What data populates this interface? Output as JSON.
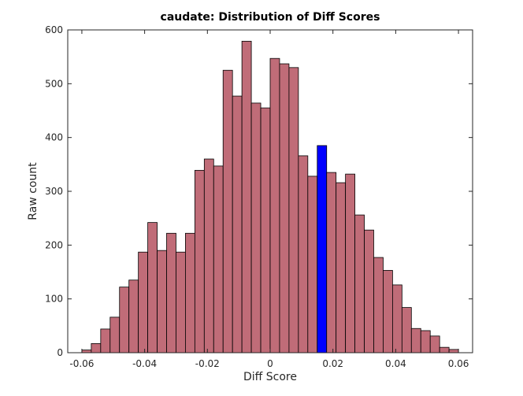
{
  "chart_data": {
    "type": "bar",
    "title": "caudate: Distribution of Diff Scores",
    "xlabel": "Diff Score",
    "ylabel": "Raw count",
    "xlim": [
      -0.0645,
      0.0645
    ],
    "ylim": [
      0,
      600
    ],
    "xticks": [
      -0.06,
      -0.04,
      -0.02,
      0,
      0.02,
      0.04,
      0.06
    ],
    "xtick_labels": [
      "-0.06",
      "-0.04",
      "-0.02",
      "0",
      "0.02",
      "0.04",
      "0.06"
    ],
    "yticks": [
      0,
      100,
      200,
      300,
      400,
      500,
      600
    ],
    "ytick_labels": [
      "0",
      "100",
      "200",
      "300",
      "400",
      "500",
      "600"
    ],
    "bin_width": 0.003,
    "bin_centers": [
      -0.0585,
      -0.0555,
      -0.0525,
      -0.0495,
      -0.0465,
      -0.0435,
      -0.0405,
      -0.0375,
      -0.0345,
      -0.0315,
      -0.0285,
      -0.0255,
      -0.0225,
      -0.0195,
      -0.0165,
      -0.0135,
      -0.0105,
      -0.0075,
      -0.0045,
      -0.0015,
      0.0015,
      0.0045,
      0.0075,
      0.0105,
      0.0135,
      0.0165,
      0.0195,
      0.0225,
      0.0255,
      0.0285,
      0.0315,
      0.0345,
      0.0375,
      0.0405,
      0.0435,
      0.0465,
      0.0495,
      0.0525,
      0.0555,
      0.0585
    ],
    "values": [
      5,
      17,
      44,
      66,
      122,
      135,
      187,
      242,
      190,
      222,
      187,
      222,
      339,
      360,
      347,
      525,
      477,
      579,
      464,
      455,
      547,
      537,
      530,
      366,
      328,
      385,
      335,
      316,
      332,
      256,
      228,
      177,
      153,
      126,
      84,
      45,
      41,
      31,
      10,
      6
    ],
    "highlight_index": 25,
    "colors": {
      "bar_fill": "#c06c78",
      "highlight_fill": "#0000ff",
      "bar_edge": "#000000",
      "axis": "#262626",
      "background": "#ffffff"
    },
    "grid": false,
    "legend": null
  }
}
